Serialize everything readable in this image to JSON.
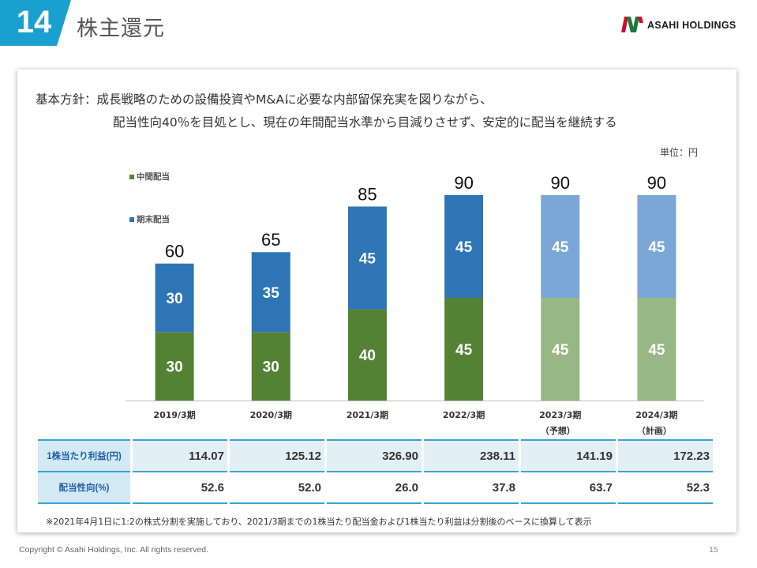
{
  "header": {
    "number": "14",
    "title": "株主還元",
    "brand": "ASAHI HOLDINGS",
    "badge_color": "#1aa0cf"
  },
  "policy": {
    "line1": "基本方針：成長戦略のための設備投資やM&Aに必要な内部留保充実を図りながら、",
    "line2": "配当性向40％を目処とし、現在の年間配当水準から目減りさせず、安定的に配当を継続する"
  },
  "unit_label": "単位：円",
  "chart_data": {
    "type": "bar",
    "stacked": true,
    "categories": [
      {
        "label": "2019/3期",
        "sub": ""
      },
      {
        "label": "2020/3期",
        "sub": ""
      },
      {
        "label": "2021/3期",
        "sub": ""
      },
      {
        "label": "2022/3期",
        "sub": ""
      },
      {
        "label": "2023/3期",
        "sub": "（予想）"
      },
      {
        "label": "2024/3期",
        "sub": "（計画）"
      }
    ],
    "series": [
      {
        "name": "中間配当",
        "values": [
          30,
          30,
          40,
          45,
          45,
          45
        ],
        "color": "#548235",
        "color_light": "#97b884"
      },
      {
        "name": "期末配当",
        "values": [
          30,
          35,
          45,
          45,
          45,
          45
        ],
        "color": "#2e75b6",
        "color_light": "#7ba7d6"
      }
    ],
    "totals": [
      60,
      65,
      85,
      90,
      90,
      90
    ],
    "light_from_index": [
      4,
      5
    ],
    "ylim": [
      0,
      90
    ],
    "legend_position": "top-left",
    "grid": false
  },
  "table": {
    "rows": [
      {
        "label": "1株当たり利益(円)",
        "values": [
          "114.07",
          "125.12",
          "326.90",
          "238.11",
          "141.19",
          "172.23"
        ]
      },
      {
        "label": "配当性向(%)",
        "values": [
          "52.6",
          "52.0",
          "26.0",
          "37.8",
          "63.7",
          "52.3"
        ]
      }
    ]
  },
  "note": "※2021年4月1日に1:2の株式分割を実施しており、2021/3期までの1株当たり配当金および1株当たり利益は分割後のベースに換算して表示",
  "footer": {
    "copyright": "Copyright © Asahi Holdings, Inc. All rights reserved.",
    "page": "15"
  }
}
